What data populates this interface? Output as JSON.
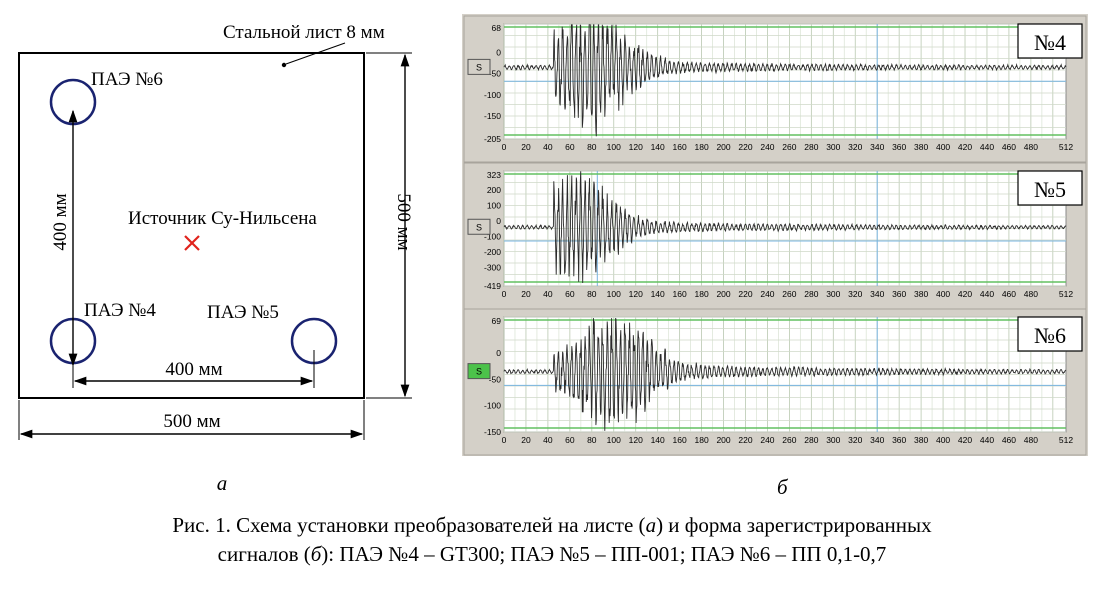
{
  "schematic": {
    "sheet_label": "Стальной лист 8 мм",
    "source_label": "Источник Су-Нильсена",
    "sensors": [
      {
        "label": "ПАЭ №6"
      },
      {
        "label": "ПАЭ №4"
      },
      {
        "label": "ПАЭ №5"
      }
    ],
    "dim_vertical_400": "400 мм",
    "dim_horizontal_400": "400 мм",
    "dim_width_500": "500 мм",
    "dim_height_500": "500 мм",
    "panel_letter": "а",
    "colors": {
      "sensor_ring": "#1a2370",
      "source_mark": "#e0231c",
      "outline": "#000000"
    }
  },
  "signals_letter": "б",
  "chart_data": [
    {
      "type": "line",
      "title": "№4",
      "button_label": "S",
      "x_ticks": [
        "0",
        "20",
        "40",
        "60",
        "80",
        "100",
        "120",
        "140",
        "160",
        "180",
        "200",
        "220",
        "240",
        "260",
        "280",
        "300",
        "320",
        "340",
        "360",
        "380",
        "400",
        "420",
        "440",
        "460",
        "480",
        "512"
      ],
      "y_ticks": [
        "68",
        "0",
        "-50",
        "-100",
        "-150",
        "-205"
      ],
      "xlim": [
        0,
        512
      ],
      "ylim": [
        -205,
        68
      ],
      "baseline": -35,
      "burst_center": 80,
      "burst_amplitude": 130,
      "tail_amplitude": 18,
      "seed": 4
    },
    {
      "type": "line",
      "title": "№5",
      "button_label": "S",
      "x_ticks": [
        "0",
        "20",
        "40",
        "60",
        "80",
        "100",
        "120",
        "140",
        "160",
        "180",
        "200",
        "220",
        "240",
        "260",
        "280",
        "300",
        "320",
        "340",
        "360",
        "380",
        "400",
        "420",
        "440",
        "460",
        "480",
        "512"
      ],
      "y_ticks": [
        "323",
        "200",
        "100",
        "0",
        "-100",
        "-200",
        "-300",
        "-419"
      ],
      "xlim": [
        0,
        512
      ],
      "ylim": [
        -419,
        323
      ],
      "baseline": -40,
      "burst_center": 65,
      "burst_amplitude": 300,
      "tail_amplitude": 45,
      "seed": 5
    },
    {
      "type": "line",
      "title": "№6",
      "button_label": "S",
      "x_ticks": [
        "0",
        "20",
        "40",
        "60",
        "80",
        "100",
        "120",
        "140",
        "160",
        "180",
        "200",
        "220",
        "240",
        "260",
        "280",
        "300",
        "320",
        "340",
        "360",
        "380",
        "400",
        "420",
        "440",
        "460",
        "480",
        "512"
      ],
      "y_ticks": [
        "69",
        "0",
        "-50",
        "-100",
        "-150"
      ],
      "xlim": [
        0,
        512
      ],
      "ylim": [
        -150,
        69
      ],
      "baseline": -35,
      "burst_center": 100,
      "burst_amplitude": 95,
      "tail_amplitude": 22,
      "seed": 6
    }
  ],
  "caption": {
    "line1_a": "Рис. 1. Схема установки преобразователей на листе (",
    "line1_b": "а",
    "line1_c": ") и форма зарегистрированных",
    "line2_a": "сигналов (",
    "line2_b": "б",
    "line2_c": "): ПАЭ №4 – GT300; ПАЭ №5 – ПП-001; ПАЭ №6 – ПП 0,1-0,7"
  }
}
